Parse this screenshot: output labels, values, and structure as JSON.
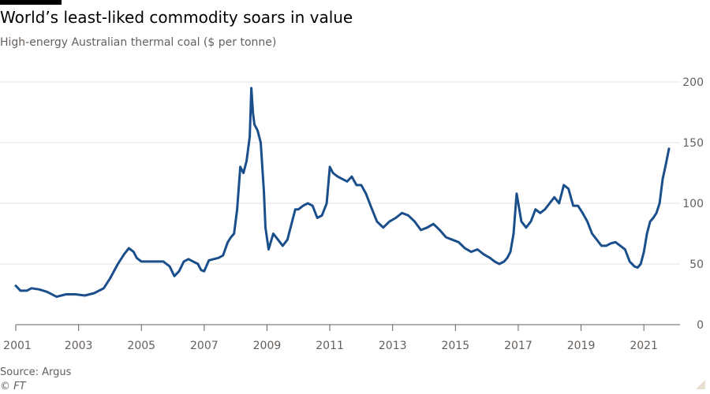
{
  "header": {
    "title": "World’s least-liked commodity soars in value",
    "subtitle": "High-energy Australian thermal coal ($ per tonne)"
  },
  "footer": {
    "source": "Source: Argus",
    "copyright": "© FT"
  },
  "colors": {
    "line": "#1a4f8b",
    "grid": "#e6e3de",
    "axis": "#66605c",
    "text": "#66605c"
  },
  "chart_data": {
    "type": "line",
    "title": "World’s least-liked commodity soars in value",
    "subtitle": "High-energy Australian thermal coal ($ per tonne)",
    "xlabel": "",
    "ylabel": "$ per tonne",
    "xlim": [
      2001.0,
      2021.85
    ],
    "ylim": [
      0,
      200
    ],
    "y_ticks": [
      0,
      50,
      100,
      150,
      200
    ],
    "x_ticks": [
      "2001",
      "2003",
      "2005",
      "2007",
      "2009",
      "2011",
      "2013",
      "2015",
      "2017",
      "2019",
      "2021"
    ],
    "grid": true,
    "legend": "none",
    "series": [
      {
        "name": "",
        "color": "#1a4f8b",
        "x": [
          2001.0,
          2001.15,
          2001.35,
          2001.5,
          2001.75,
          2002.0,
          2002.3,
          2002.6,
          2002.9,
          2003.2,
          2003.5,
          2003.8,
          2004.0,
          2004.25,
          2004.45,
          2004.6,
          2004.75,
          2004.85,
          2005.0,
          2005.2,
          2005.4,
          2005.7,
          2005.9,
          2006.05,
          2006.2,
          2006.35,
          2006.5,
          2006.65,
          2006.8,
          2006.9,
          2007.0,
          2007.15,
          2007.3,
          2007.45,
          2007.6,
          2007.75,
          2007.85,
          2007.95,
          2008.05,
          2008.15,
          2008.25,
          2008.35,
          2008.45,
          2008.5,
          2008.55,
          2008.6,
          2008.7,
          2008.8,
          2008.9,
          2008.95,
          2009.05,
          2009.2,
          2009.35,
          2009.5,
          2009.65,
          2009.8,
          2009.9,
          2010.0,
          2010.15,
          2010.3,
          2010.45,
          2010.6,
          2010.75,
          2010.9,
          2011.0,
          2011.1,
          2011.25,
          2011.4,
          2011.55,
          2011.7,
          2011.85,
          2012.0,
          2012.15,
          2012.3,
          2012.5,
          2012.7,
          2012.9,
          2013.1,
          2013.3,
          2013.5,
          2013.7,
          2013.9,
          2014.1,
          2014.3,
          2014.5,
          2014.7,
          2014.9,
          2015.1,
          2015.3,
          2015.5,
          2015.7,
          2015.9,
          2016.1,
          2016.25,
          2016.4,
          2016.55,
          2016.65,
          2016.75,
          2016.85,
          2016.95,
          2017.1,
          2017.25,
          2017.4,
          2017.55,
          2017.7,
          2017.85,
          2018.0,
          2018.15,
          2018.3,
          2018.45,
          2018.6,
          2018.75,
          2018.9,
          2019.05,
          2019.2,
          2019.35,
          2019.5,
          2019.65,
          2019.8,
          2019.95,
          2020.1,
          2020.25,
          2020.4,
          2020.55,
          2020.7,
          2020.8,
          2020.9,
          2021.0,
          2021.1,
          2021.2,
          2021.3,
          2021.4,
          2021.5,
          2021.6,
          2021.7,
          2021.8
        ],
        "values": [
          32,
          28,
          28,
          30,
          29,
          27,
          23,
          25,
          25,
          24,
          26,
          30,
          38,
          50,
          58,
          63,
          60,
          55,
          52,
          52,
          52,
          52,
          48,
          40,
          44,
          52,
          54,
          52,
          50,
          45,
          44,
          53,
          54,
          55,
          57,
          68,
          72,
          75,
          95,
          130,
          125,
          135,
          155,
          195,
          175,
          165,
          160,
          150,
          110,
          80,
          62,
          75,
          70,
          65,
          70,
          85,
          95,
          95,
          98,
          100,
          98,
          88,
          90,
          100,
          130,
          125,
          122,
          120,
          118,
          122,
          115,
          115,
          108,
          98,
          85,
          80,
          85,
          88,
          92,
          90,
          85,
          78,
          80,
          83,
          78,
          72,
          70,
          68,
          63,
          60,
          62,
          58,
          55,
          52,
          50,
          52,
          55,
          60,
          75,
          108,
          85,
          80,
          85,
          95,
          92,
          95,
          100,
          105,
          100,
          115,
          112,
          98,
          98,
          92,
          85,
          75,
          70,
          65,
          65,
          67,
          68,
          65,
          62,
          52,
          48,
          47,
          50,
          60,
          75,
          85,
          88,
          92,
          100,
          120,
          132,
          145
        ]
      }
    ]
  }
}
